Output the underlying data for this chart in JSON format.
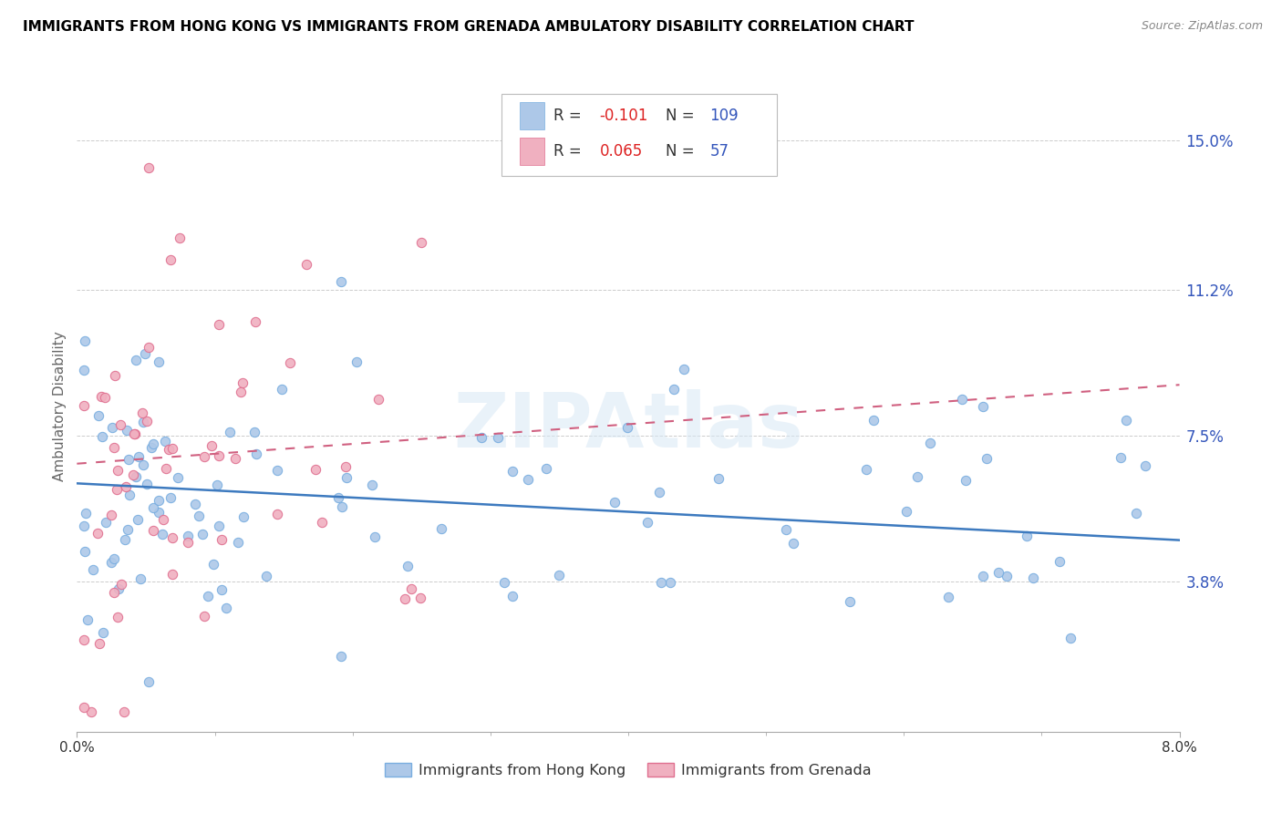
{
  "title": "IMMIGRANTS FROM HONG KONG VS IMMIGRANTS FROM GRENADA AMBULATORY DISABILITY CORRELATION CHART",
  "source": "Source: ZipAtlas.com",
  "ylabel_label": "Ambulatory Disability",
  "y_ticks": [
    0.038,
    0.075,
    0.112,
    0.15
  ],
  "y_tick_labels": [
    "3.8%",
    "7.5%",
    "11.2%",
    "15.0%"
  ],
  "x_ticks": [
    0.0,
    0.08
  ],
  "x_tick_labels": [
    "0.0%",
    "8.0%"
  ],
  "x_min": 0.0,
  "x_max": 0.08,
  "y_min": 0.0,
  "y_max": 0.165,
  "series": [
    {
      "name": "Immigrants from Hong Kong",
      "color": "#adc8e8",
      "edge_color": "#7aaee0",
      "R": -0.101,
      "N": 109,
      "line_color": "#3d7abf",
      "line_style": "solid"
    },
    {
      "name": "Immigrants from Grenada",
      "color": "#f0b0c0",
      "edge_color": "#e07090",
      "R": 0.065,
      "N": 57,
      "line_color": "#d06080",
      "line_style": "dashed"
    }
  ],
  "watermark": "ZIPAtlas",
  "legend_R_color": "#dd2222",
  "legend_N_color": "#3355bb",
  "hk_intercept": 0.063,
  "hk_slope": -0.18,
  "gr_intercept": 0.068,
  "gr_slope": 0.25
}
